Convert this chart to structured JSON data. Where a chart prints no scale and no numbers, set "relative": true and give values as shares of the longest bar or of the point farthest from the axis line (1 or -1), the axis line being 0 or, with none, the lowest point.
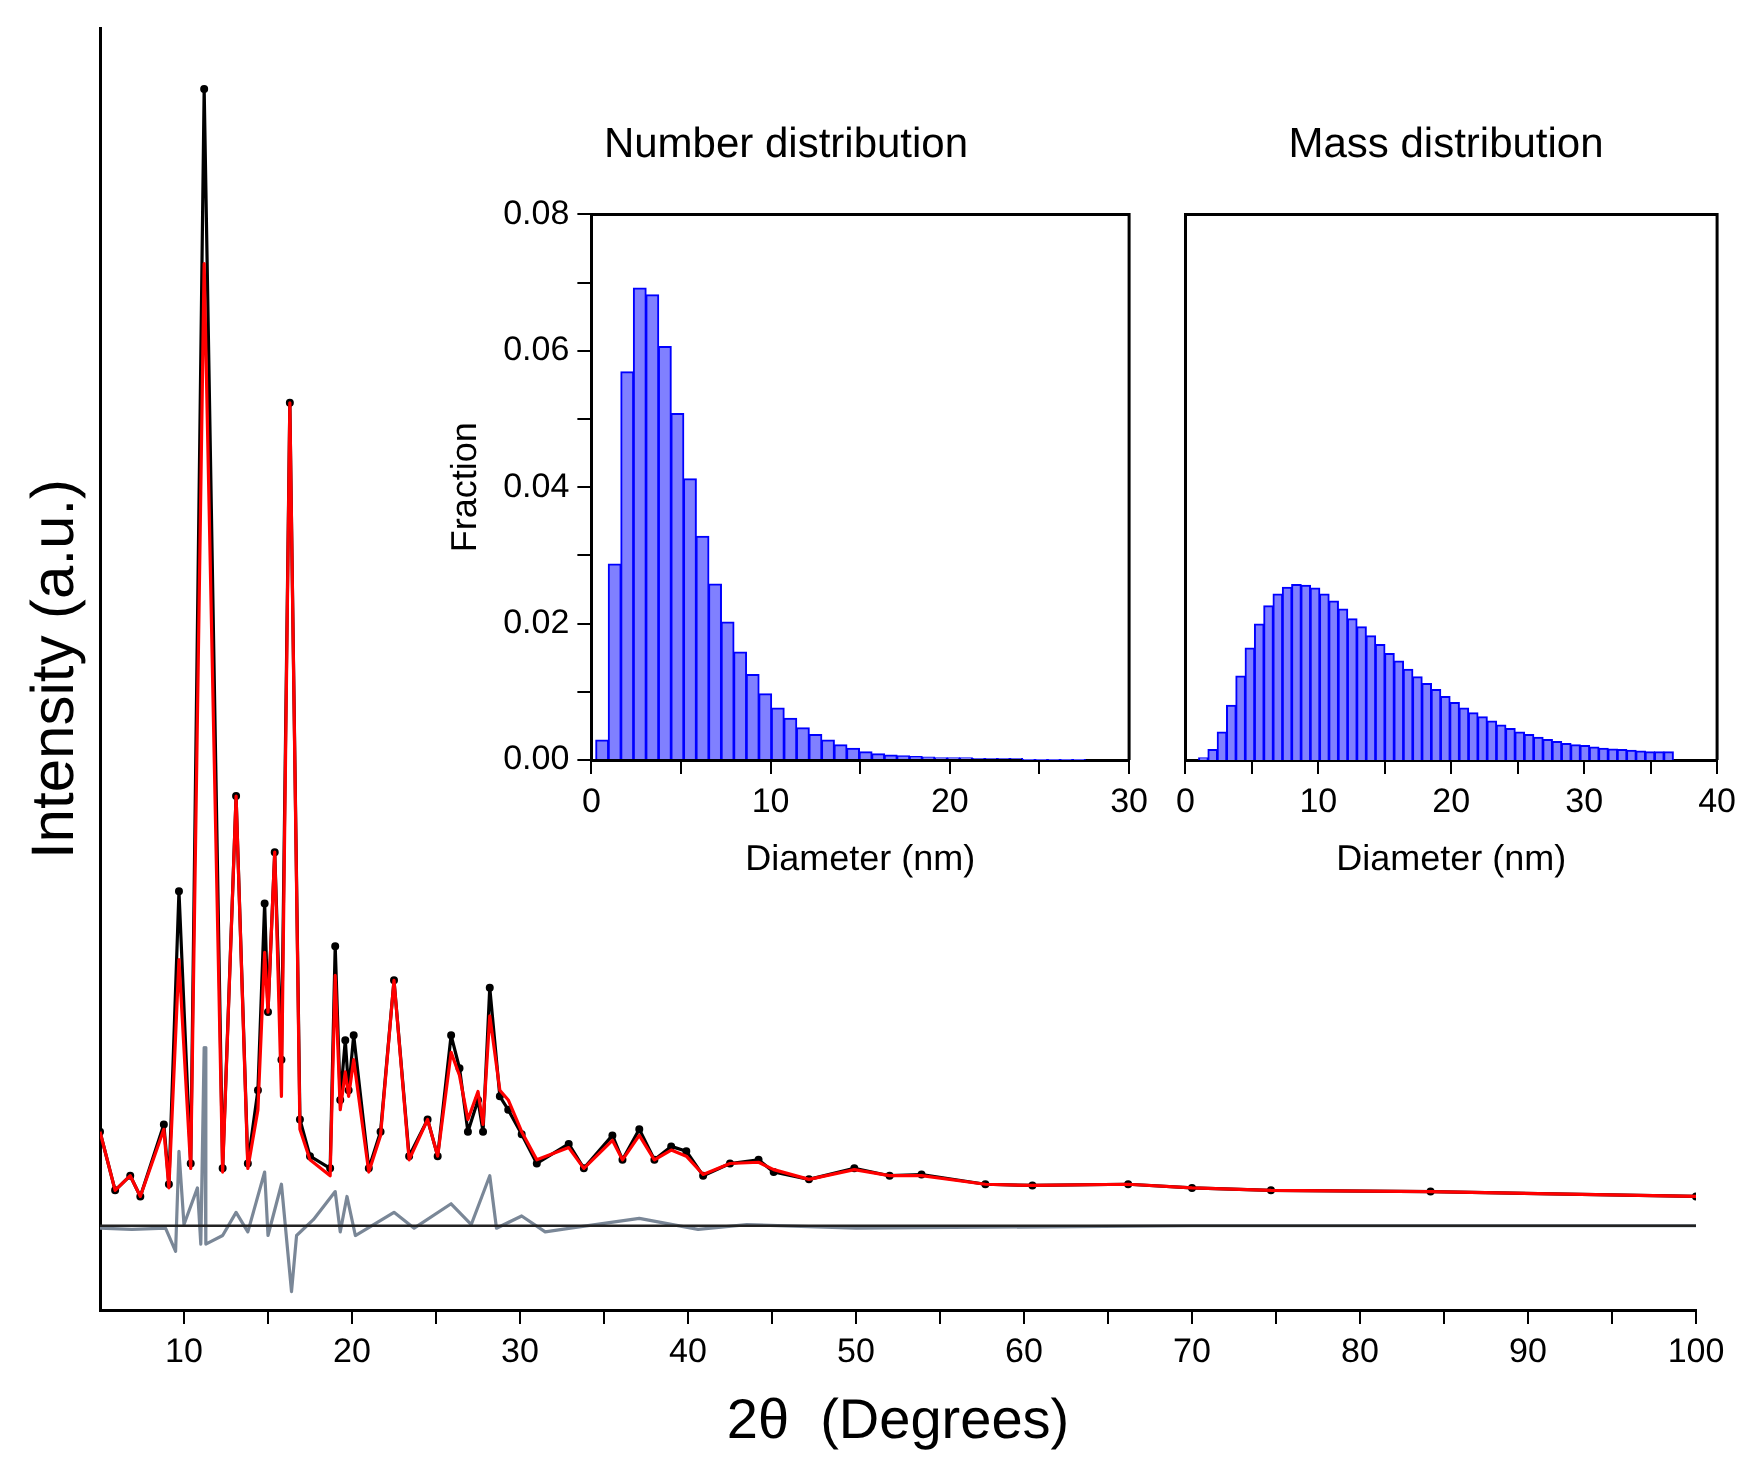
{
  "chart_data": [
    {
      "type": "line",
      "xlabel": "2θ  (Degrees)",
      "ylabel": "Intensity (a.u.)",
      "relative": true,
      "grid": false,
      "legend": false,
      "xlim": [
        5,
        100
      ],
      "xticks": [
        10,
        {
          "value": 15,
          "label": null
        },
        20,
        {
          "value": 25,
          "label": null
        },
        30,
        {
          "value": 35,
          "label": null
        },
        40,
        {
          "value": 45,
          "label": null
        },
        50,
        {
          "value": 55,
          "label": null
        },
        60,
        {
          "value": 65,
          "label": null
        },
        70,
        {
          "value": 75,
          "label": null
        },
        80,
        {
          "value": 85,
          "label": null
        },
        90,
        {
          "value": 95,
          "label": null
        },
        100
      ],
      "x": [
        5.0,
        5.9,
        6.8,
        7.4,
        8.8,
        9.1,
        9.7,
        10.4,
        11.2,
        12.3,
        13.1,
        13.8,
        14.4,
        14.8,
        15.0,
        15.4,
        15.8,
        16.3,
        16.9,
        17.5,
        18.7,
        19.0,
        19.3,
        19.6,
        19.8,
        20.1,
        21.0,
        21.7,
        22.5,
        23.4,
        24.5,
        25.1,
        25.9,
        26.4,
        26.9,
        27.5,
        27.8,
        28.2,
        28.8,
        29.3,
        30.1,
        31.0,
        32.9,
        33.8,
        35.5,
        36.1,
        37.1,
        38.0,
        39.0,
        39.9,
        40.9,
        42.5,
        44.2,
        45.1,
        47.2,
        49.9,
        52.0,
        53.9,
        57.7,
        60.5,
        66.2,
        70.0,
        74.7,
        84.2,
        100
      ],
      "ref_lines": [
        {
          "axis": "y",
          "value": 0.069
        }
      ],
      "series": [
        {
          "color": "#000000",
          "marker": "circle",
          "values": [
            0.146,
            0.098,
            0.11,
            0.093,
            0.152,
            0.103,
            0.343,
            0.12,
            1.0,
            0.116,
            0.421,
            0.12,
            0.18,
            0.333,
            0.244,
            0.375,
            0.205,
            0.743,
            0.156,
            0.126,
            0.116,
            0.298,
            0.172,
            0.221,
            0.18,
            0.225,
            0.116,
            0.146,
            0.27,
            0.126,
            0.156,
            0.126,
            0.225,
            0.198,
            0.146,
            0.172,
            0.146,
            0.264,
            0.175,
            0.164,
            0.144,
            0.12,
            0.136,
            0.116,
            0.143,
            0.123,
            0.148,
            0.123,
            0.134,
            0.13,
            0.11,
            0.12,
            0.123,
            0.113,
            0.107,
            0.116,
            0.11,
            0.111,
            0.103,
            0.102,
            0.103,
            0.1,
            0.098,
            0.097,
            0.093
          ]
        },
        {
          "color": "#ff0000",
          "values": [
            0.146,
            0.098,
            0.11,
            0.093,
            0.148,
            0.1,
            0.287,
            0.116,
            0.857,
            0.113,
            0.421,
            0.116,
            0.164,
            0.293,
            0.244,
            0.375,
            0.175,
            0.743,
            0.148,
            0.123,
            0.11,
            0.274,
            0.164,
            0.195,
            0.175,
            0.205,
            0.113,
            0.143,
            0.27,
            0.123,
            0.156,
            0.126,
            0.211,
            0.192,
            0.156,
            0.179,
            0.152,
            0.241,
            0.18,
            0.172,
            0.146,
            0.123,
            0.133,
            0.116,
            0.139,
            0.123,
            0.143,
            0.123,
            0.131,
            0.126,
            0.111,
            0.12,
            0.121,
            0.115,
            0.107,
            0.115,
            0.11,
            0.11,
            0.103,
            0.102,
            0.103,
            0.1,
            0.098,
            0.097,
            0.093
          ]
        },
        {
          "color": "#7a8797",
          "x": [
            5.0,
            6.9,
            8.9,
            9.5,
            9.7,
            10.0,
            10.8,
            11.0,
            11.2,
            11.3,
            12.3,
            13.1,
            13.8,
            14.8,
            15.0,
            15.8,
            16.4,
            16.7,
            17.7,
            19.0,
            19.3,
            19.7,
            20.2,
            22.5,
            23.7,
            25.9,
            27.1,
            28.2,
            28.6,
            30.1,
            31.5,
            33.0,
            37.1,
            40.6,
            43.5,
            50,
            70,
            100
          ],
          "values": [
            0.067,
            0.066,
            0.067,
            0.048,
            0.13,
            0.07,
            0.1,
            0.054,
            0.215,
            0.054,
            0.061,
            0.08,
            0.064,
            0.113,
            0.061,
            0.103,
            0.015,
            0.061,
            0.074,
            0.097,
            0.064,
            0.093,
            0.061,
            0.08,
            0.067,
            0.087,
            0.07,
            0.11,
            0.067,
            0.077,
            0.064,
            0.067,
            0.075,
            0.066,
            0.07,
            0.067,
            0.069,
            0.069
          ]
        }
      ]
    },
    {
      "type": "histogram",
      "title": "Number distribution",
      "xlabel": "Diameter (nm)",
      "ylabel": "Fraction",
      "color": "#8080ff",
      "xlim": [
        0,
        30
      ],
      "xticks": [
        0,
        {
          "value": 5,
          "label": null
        },
        10,
        {
          "value": 15,
          "label": null
        },
        20,
        {
          "value": 25,
          "label": null
        },
        30
      ],
      "ylim": [
        0,
        0.08
      ],
      "yticks": [
        {
          "value": 0,
          "label": "0.00"
        },
        {
          "value": 0.01,
          "label": null
        },
        0.02,
        {
          "value": 0.03,
          "label": null
        },
        0.04,
        {
          "value": 0.05,
          "label": null
        },
        0.06,
        {
          "value": 0.07,
          "label": null
        },
        0.08
      ],
      "bins": [
        0.25,
        0.95,
        1.65,
        2.35,
        3.05,
        3.75,
        4.45,
        5.15,
        5.85,
        6.55,
        7.25,
        7.95,
        8.65,
        9.35,
        10.05,
        10.75,
        11.45,
        12.15,
        12.85,
        13.55,
        14.25,
        14.95,
        15.65,
        16.35,
        17.05,
        17.75,
        18.45,
        19.15,
        19.85,
        20.55,
        21.25,
        21.95,
        22.65,
        23.35,
        24.05,
        24.75,
        25.45,
        26.15,
        26.85,
        27.55
      ],
      "values": [
        0.0029,
        0.0287,
        0.0569,
        0.0692,
        0.0682,
        0.0606,
        0.0508,
        0.0412,
        0.0328,
        0.0258,
        0.0202,
        0.0158,
        0.0125,
        0.0097,
        0.0076,
        0.0061,
        0.0047,
        0.0037,
        0.0029,
        0.0022,
        0.0017,
        0.0012,
        0.0009,
        0.0007,
        0.0006,
        0.0005,
        0.0004,
        0.0003,
        0.0003,
        0.0003,
        0.0002,
        0.0002,
        0.0002,
        0.0002,
        0.0001,
        0.0001,
        0.0001,
        0.0001,
        0.0001
      ]
    },
    {
      "type": "histogram",
      "title": "Mass distribution",
      "xlabel": "Diameter (nm)",
      "color": "#8080ff",
      "tick_labels": "x",
      "xlim": [
        0,
        40
      ],
      "xticks": [
        0,
        {
          "value": 5,
          "label": null
        },
        10,
        {
          "value": 15,
          "label": null
        },
        20,
        {
          "value": 25,
          "label": null
        },
        30,
        {
          "value": 35,
          "label": null
        },
        40
      ],
      "ylim": [
        0,
        0.08
      ],
      "bins": [
        1.0,
        1.7,
        2.4,
        3.1,
        3.8,
        4.5,
        5.2,
        5.9,
        6.6,
        7.3,
        8.0,
        8.7,
        9.4,
        10.1,
        10.8,
        11.5,
        12.2,
        12.9,
        13.6,
        14.3,
        15.0,
        15.7,
        16.4,
        17.1,
        17.8,
        18.5,
        19.2,
        19.9,
        20.6,
        21.3,
        22.0,
        22.7,
        23.4,
        24.1,
        24.8,
        25.5,
        26.2,
        26.9,
        27.6,
        28.3,
        29.0,
        29.7,
        30.4,
        31.1,
        31.8,
        32.5,
        33.2,
        33.9,
        34.6,
        35.3,
        36.0,
        36.7
      ],
      "values": [
        0.0003,
        0.0015,
        0.0041,
        0.008,
        0.0123,
        0.0164,
        0.0199,
        0.0226,
        0.0243,
        0.0253,
        0.0257,
        0.0256,
        0.0252,
        0.0243,
        0.0233,
        0.0221,
        0.0207,
        0.0195,
        0.0182,
        0.0169,
        0.0156,
        0.0145,
        0.0133,
        0.0122,
        0.0112,
        0.0103,
        0.0093,
        0.0084,
        0.0076,
        0.0069,
        0.0063,
        0.0057,
        0.0051,
        0.0046,
        0.0041,
        0.0037,
        0.0033,
        0.003,
        0.0027,
        0.0024,
        0.0022,
        0.0021,
        0.0019,
        0.0017,
        0.0016,
        0.0015,
        0.0014,
        0.0013,
        0.0012,
        0.0012,
        0.0012
      ]
    }
  ]
}
